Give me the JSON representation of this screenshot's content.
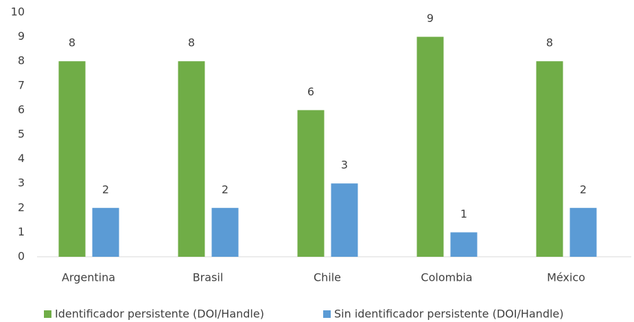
{
  "chart_data": {
    "type": "bar",
    "categories": [
      "Argentina",
      "Brasil",
      "Chile",
      "Colombia",
      "México"
    ],
    "series": [
      {
        "name": "Identificador persistente (DOI/Handle)",
        "color": "#70ad47",
        "values": [
          8,
          8,
          6,
          9,
          8
        ]
      },
      {
        "name": "Sin identificador persistente (DOI/Handle)",
        "color": "#5b9bd5",
        "values": [
          2,
          2,
          3,
          1,
          2
        ]
      }
    ],
    "ylim": [
      0,
      10
    ],
    "yticks": [
      0,
      1,
      2,
      3,
      4,
      5,
      6,
      7,
      8,
      9,
      10
    ],
    "legend": "bottom"
  }
}
